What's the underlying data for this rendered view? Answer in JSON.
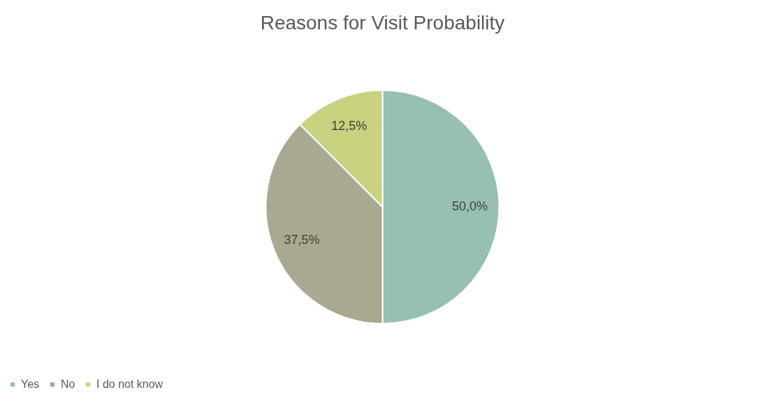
{
  "chart_data": {
    "type": "pie",
    "title": "Reasons for Visit Probability",
    "categories": [
      "Yes",
      "No",
      "I do not know"
    ],
    "values": [
      50,
      37.5,
      12.5
    ],
    "value_labels": [
      "50,0%",
      "37,5%",
      "12,5%"
    ],
    "colors": [
      "#97bfb4",
      "#a8a990",
      "#c8d27f"
    ],
    "legend": "bottom"
  }
}
